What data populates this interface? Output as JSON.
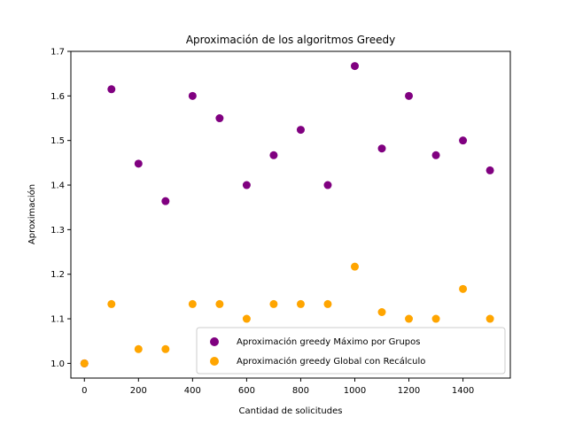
{
  "chart_data": {
    "type": "scatter",
    "title": "Aproximación de los algoritmos Greedy",
    "xlabel": "Cantidad de solicitudes",
    "ylabel": "Aproximación",
    "xlim": [
      -50,
      1575
    ],
    "ylim": [
      0.967,
      1.7
    ],
    "xticks": [
      0,
      200,
      400,
      600,
      800,
      1000,
      1200,
      1400
    ],
    "yticks": [
      1.0,
      1.1,
      1.2,
      1.3,
      1.4,
      1.5,
      1.6,
      1.7
    ],
    "grid": false,
    "legend_position": "lower-right",
    "series": [
      {
        "name": "Aproximación greedy Máximo por Grupos",
        "color": "#800080",
        "x": [
          0,
          100,
          200,
          300,
          400,
          500,
          600,
          700,
          800,
          900,
          1000,
          1100,
          1200,
          1300,
          1400,
          1500
        ],
        "y": [
          1.0,
          1.615,
          1.448,
          1.364,
          1.6,
          1.55,
          1.4,
          1.467,
          1.524,
          1.4,
          1.667,
          1.482,
          1.6,
          1.467,
          1.5,
          1.433
        ]
      },
      {
        "name": "Aproximación greedy Global con Recálculo",
        "color": "#FFA500",
        "x": [
          0,
          100,
          200,
          300,
          400,
          500,
          600,
          700,
          800,
          900,
          1000,
          1100,
          1200,
          1300,
          1400,
          1500
        ],
        "y": [
          1.0,
          1.133,
          1.032,
          1.032,
          1.133,
          1.133,
          1.1,
          1.133,
          1.133,
          1.133,
          1.217,
          1.115,
          1.1,
          1.1,
          1.167,
          1.1
        ]
      }
    ]
  }
}
